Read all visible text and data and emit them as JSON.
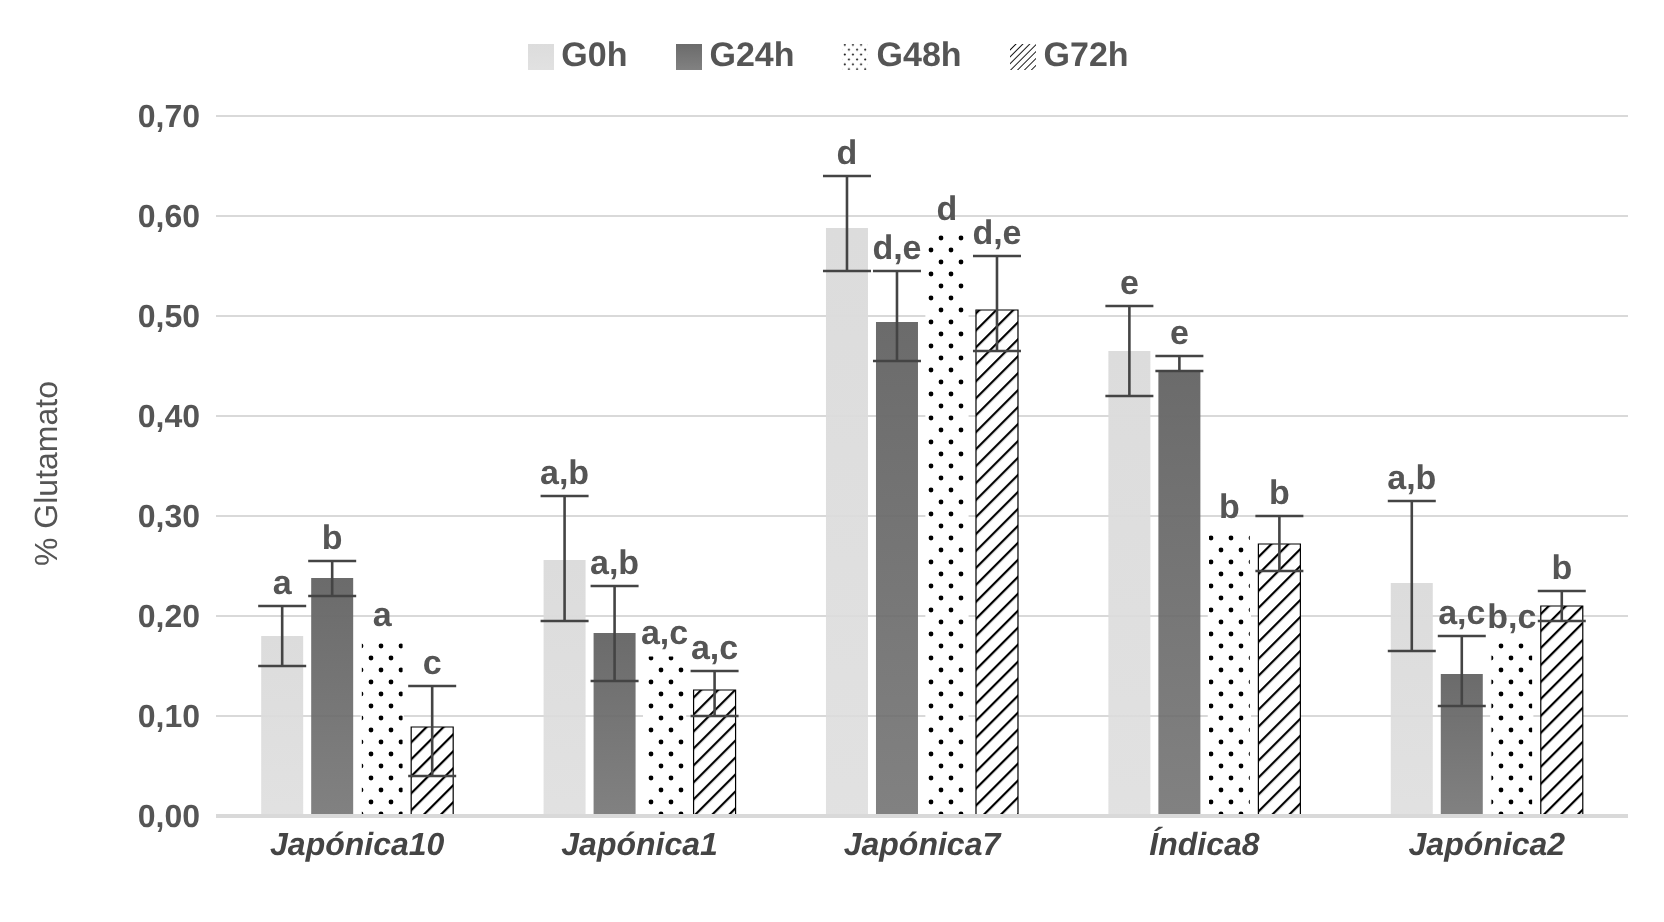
{
  "chart_data": {
    "type": "bar",
    "ylabel": "% Glutamato",
    "categories": [
      "Japónica10",
      "Japónica1",
      "Japónica7",
      "Índica8",
      "Japónica2"
    ],
    "series": [
      {
        "name": "G0h",
        "color": "#dcdcdc",
        "values": [
          0.18,
          0.256,
          0.588,
          0.465,
          0.233
        ],
        "errors": [
          [
            0.15,
            0.21
          ],
          [
            0.195,
            0.32
          ],
          [
            0.545,
            0.64
          ],
          [
            0.42,
            0.51
          ],
          [
            0.165,
            0.315
          ]
        ]
      },
      {
        "name": "G24h",
        "color": "#6b6b6b",
        "values": [
          0.238,
          0.183,
          0.494,
          0.446,
          0.142
        ],
        "errors": [
          [
            0.22,
            0.255
          ],
          [
            0.135,
            0.23
          ],
          [
            0.455,
            0.545
          ],
          [
            0.445,
            0.46
          ],
          [
            0.11,
            0.18
          ]
        ]
      },
      {
        "name": "G48h",
        "color": "#ffffff",
        "values": [
          0.178,
          0.16,
          0.584,
          0.286,
          0.176
        ]
      },
      {
        "name": "G72h",
        "color": "#000000",
        "values": [
          0.089,
          0.126,
          0.506,
          0.272,
          0.21
        ],
        "errors": [
          [
            0.04,
            0.13
          ],
          [
            0.1,
            0.145
          ],
          [
            0.465,
            0.56
          ],
          [
            0.245,
            0.3
          ],
          [
            0.195,
            0.225
          ]
        ]
      }
    ],
    "ylim": [
      0,
      0.7
    ],
    "yticks": [
      {
        "value": 0,
        "label": "0,00"
      },
      {
        "value": 0.1,
        "label": "0,10"
      },
      {
        "value": 0.2,
        "label": "0,20"
      },
      {
        "value": 0.3,
        "label": "0,30"
      },
      {
        "value": 0.4,
        "label": "0,40"
      },
      {
        "value": 0.5,
        "label": "0,50"
      },
      {
        "value": 0.6,
        "label": "0,60"
      },
      {
        "value": 0.7,
        "label": "0,70"
      }
    ],
    "grid": "y",
    "legend": "top",
    "annotations": [
      "a",
      "b",
      "a",
      "c",
      "a,b",
      "a,b",
      "a,c",
      "a,c",
      "d",
      "d,e",
      "d",
      "d,e",
      "e",
      "e",
      "b",
      "b",
      "a,b",
      "a,c",
      "b,c",
      "b"
    ]
  }
}
